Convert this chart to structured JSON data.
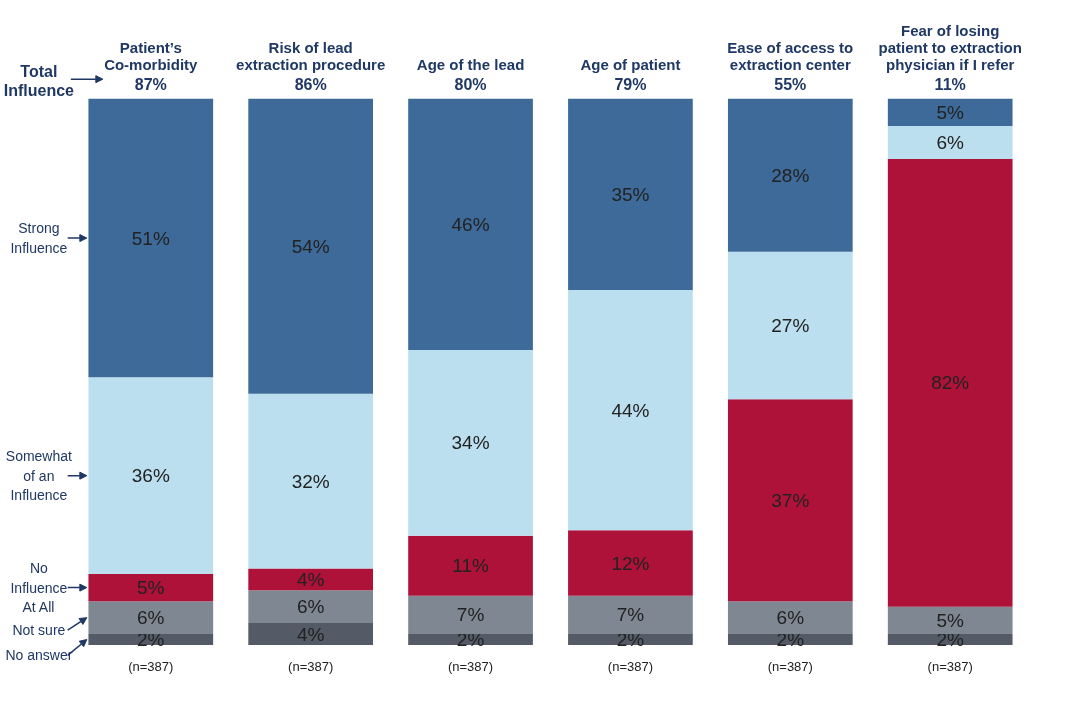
{
  "chart_data": {
    "type": "bar",
    "stacked": true,
    "legend": "left",
    "grid": false,
    "categories": [
      "Patient’s Co-morbidity",
      "Risk of lead extraction procedure",
      "Age of the lead",
      "Age of patient",
      "Ease of access to extraction center",
      "Fear of losing patient to extraction physician if I refer"
    ],
    "series": [
      {
        "name": "No answer",
        "color": "#545b66",
        "values": [
          2,
          4,
          2,
          2,
          2,
          2
        ],
        "value_labels": [
          "2%",
          "4%",
          "2%",
          "2%",
          "2%",
          "2%"
        ]
      },
      {
        "name": "Not sure",
        "color": "#7f8793",
        "values": [
          6,
          6,
          7,
          7,
          6,
          5
        ],
        "value_labels": [
          "6%",
          "6%",
          "7%",
          "7%",
          "6%",
          "5%"
        ]
      },
      {
        "name": "No Influence At All",
        "color": "#ae1238",
        "values": [
          5,
          4,
          11,
          12,
          37,
          82
        ],
        "value_labels": [
          "5%",
          "4%",
          "11%",
          "12%",
          "37%",
          "82%"
        ]
      },
      {
        "name": "Somewhat of an Influence",
        "color": "#bcdff0",
        "values": [
          36,
          32,
          34,
          44,
          27,
          6
        ],
        "value_labels": [
          "36%",
          "32%",
          "34%",
          "44%",
          "27%",
          "6%"
        ]
      },
      {
        "name": "Strong Influence",
        "color": "#3d6a99",
        "values": [
          51,
          54,
          46,
          35,
          28,
          5
        ],
        "value_labels": [
          "51%",
          "54%",
          "46%",
          "35%",
          "28%",
          "5%"
        ]
      }
    ],
    "annotations": [
      "Total Influence",
      "(n=387)",
      "(n=387)",
      "(n=387)",
      "(n=387)",
      "(n=387)",
      "(n=387)",
      {
        "text": "87%",
        "x": "Patient’s Co-morbidity",
        "y": 100
      },
      {
        "text": "86%",
        "x": "Risk of lead extraction procedure",
        "y": 100
      },
      {
        "text": "80%",
        "x": "Age of the lead",
        "y": 100
      },
      {
        "text": "79%",
        "x": "Age of patient",
        "y": 100
      },
      {
        "text": "55%",
        "x": "Ease of access to extraction center",
        "y": 100
      },
      {
        "text": "11%",
        "x": "Fear of losing patient to extraction physician if I refer",
        "y": 100
      }
    ]
  }
}
